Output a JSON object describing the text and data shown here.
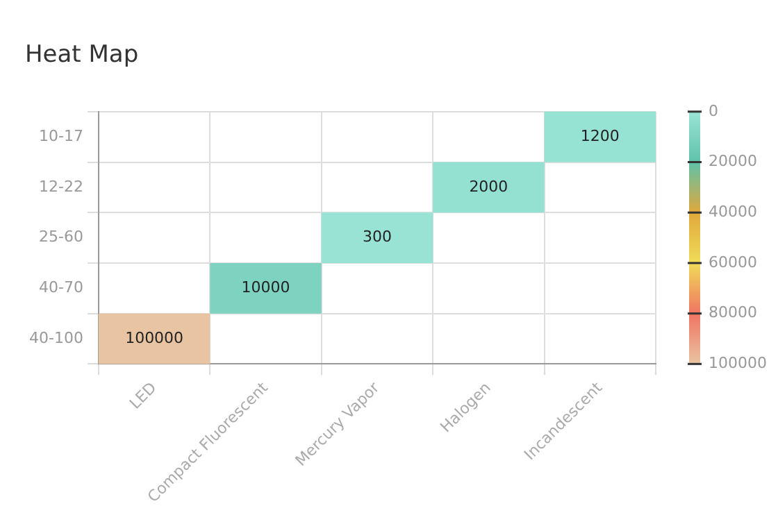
{
  "chart_data": {
    "type": "heatmap",
    "title": "Heat Map",
    "categories": [
      "LED",
      "Compact Fluorescent",
      "Mercury Vapor",
      "Halogen",
      "Incandescent"
    ],
    "y_categories": [
      "10-17",
      "12-22",
      "25-60",
      "40-70",
      "40-100"
    ],
    "cells": [
      [
        null,
        null,
        null,
        null,
        1200
      ],
      [
        null,
        null,
        null,
        2000,
        null
      ],
      [
        null,
        null,
        300,
        null,
        null
      ],
      [
        null,
        10000,
        null,
        null,
        null
      ],
      [
        100000,
        null,
        null,
        null,
        null
      ]
    ],
    "data_labels": true,
    "clim": [
      0,
      100000
    ],
    "cticks": [
      0,
      20000,
      40000,
      60000,
      80000,
      100000
    ],
    "grid": true,
    "legend": false
  }
}
